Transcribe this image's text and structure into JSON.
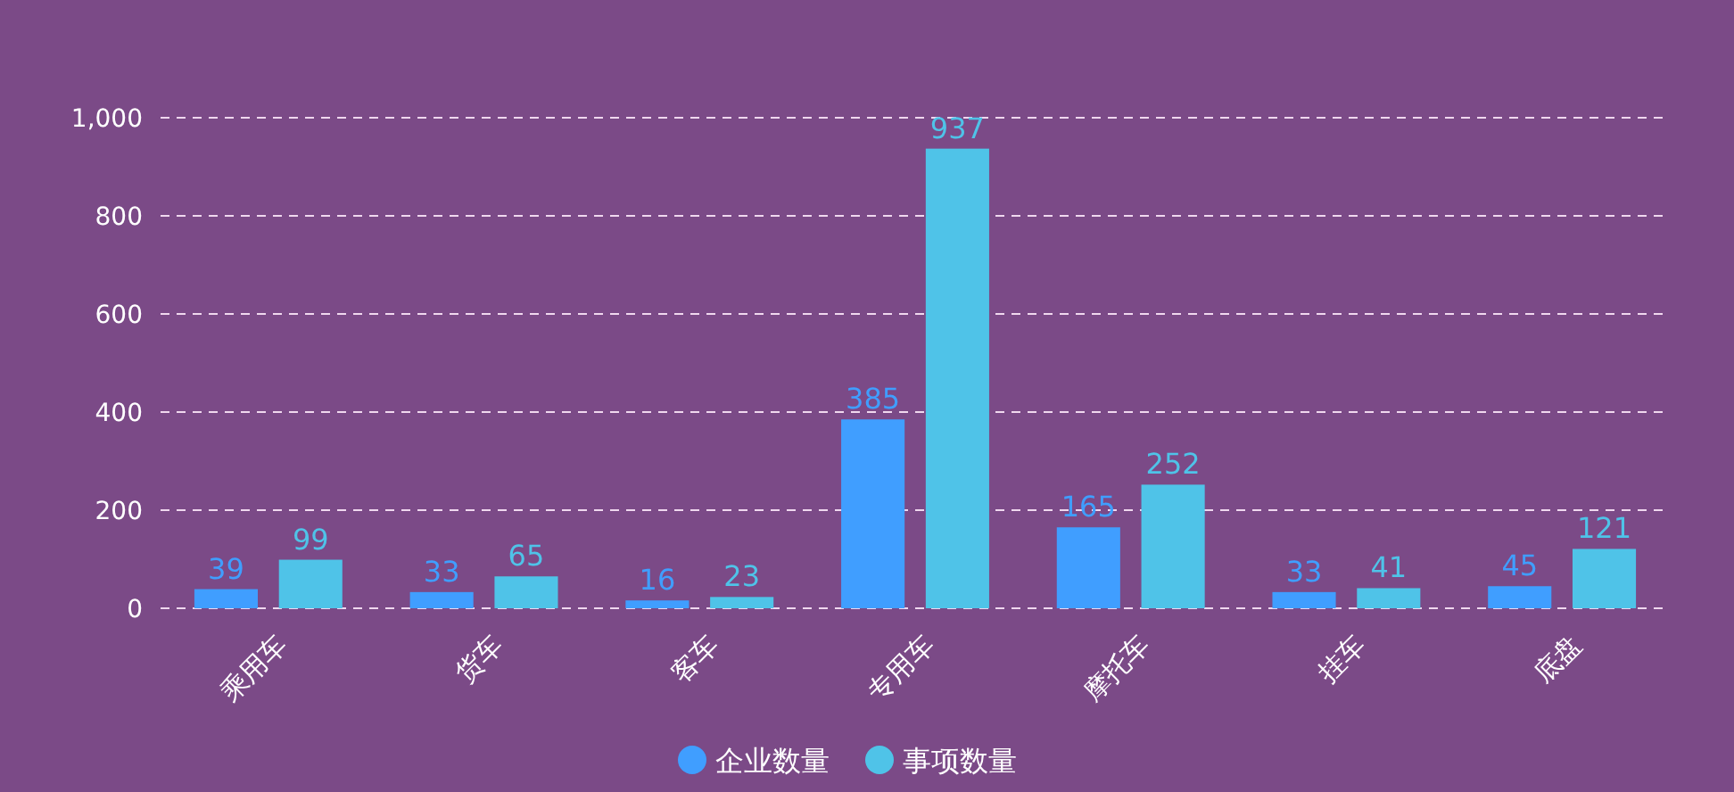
{
  "chart_data": {
    "type": "bar",
    "categories": [
      "乘用车",
      "货车",
      "客车",
      "专用车",
      "摩托车",
      "挂车",
      "底盘"
    ],
    "series": [
      {
        "name": "企业数量",
        "color": "#409eff",
        "values": [
          39,
          33,
          16,
          385,
          165,
          33,
          45
        ]
      },
      {
        "name": "事项数量",
        "color": "#4fc3e8",
        "values": [
          99,
          65,
          23,
          937,
          252,
          41,
          121
        ]
      }
    ],
    "ylim": [
      0,
      1000
    ],
    "yticks": [
      0,
      {
        "value": 200,
        "label": "200"
      },
      {
        "value": 400,
        "label": "400"
      },
      {
        "value": 600,
        "label": "600"
      },
      {
        "value": 800,
        "label": "800"
      },
      {
        "value": 1000,
        "label": "1,000"
      }
    ],
    "grid": "y",
    "legend": "bottom",
    "data_labels": true
  }
}
